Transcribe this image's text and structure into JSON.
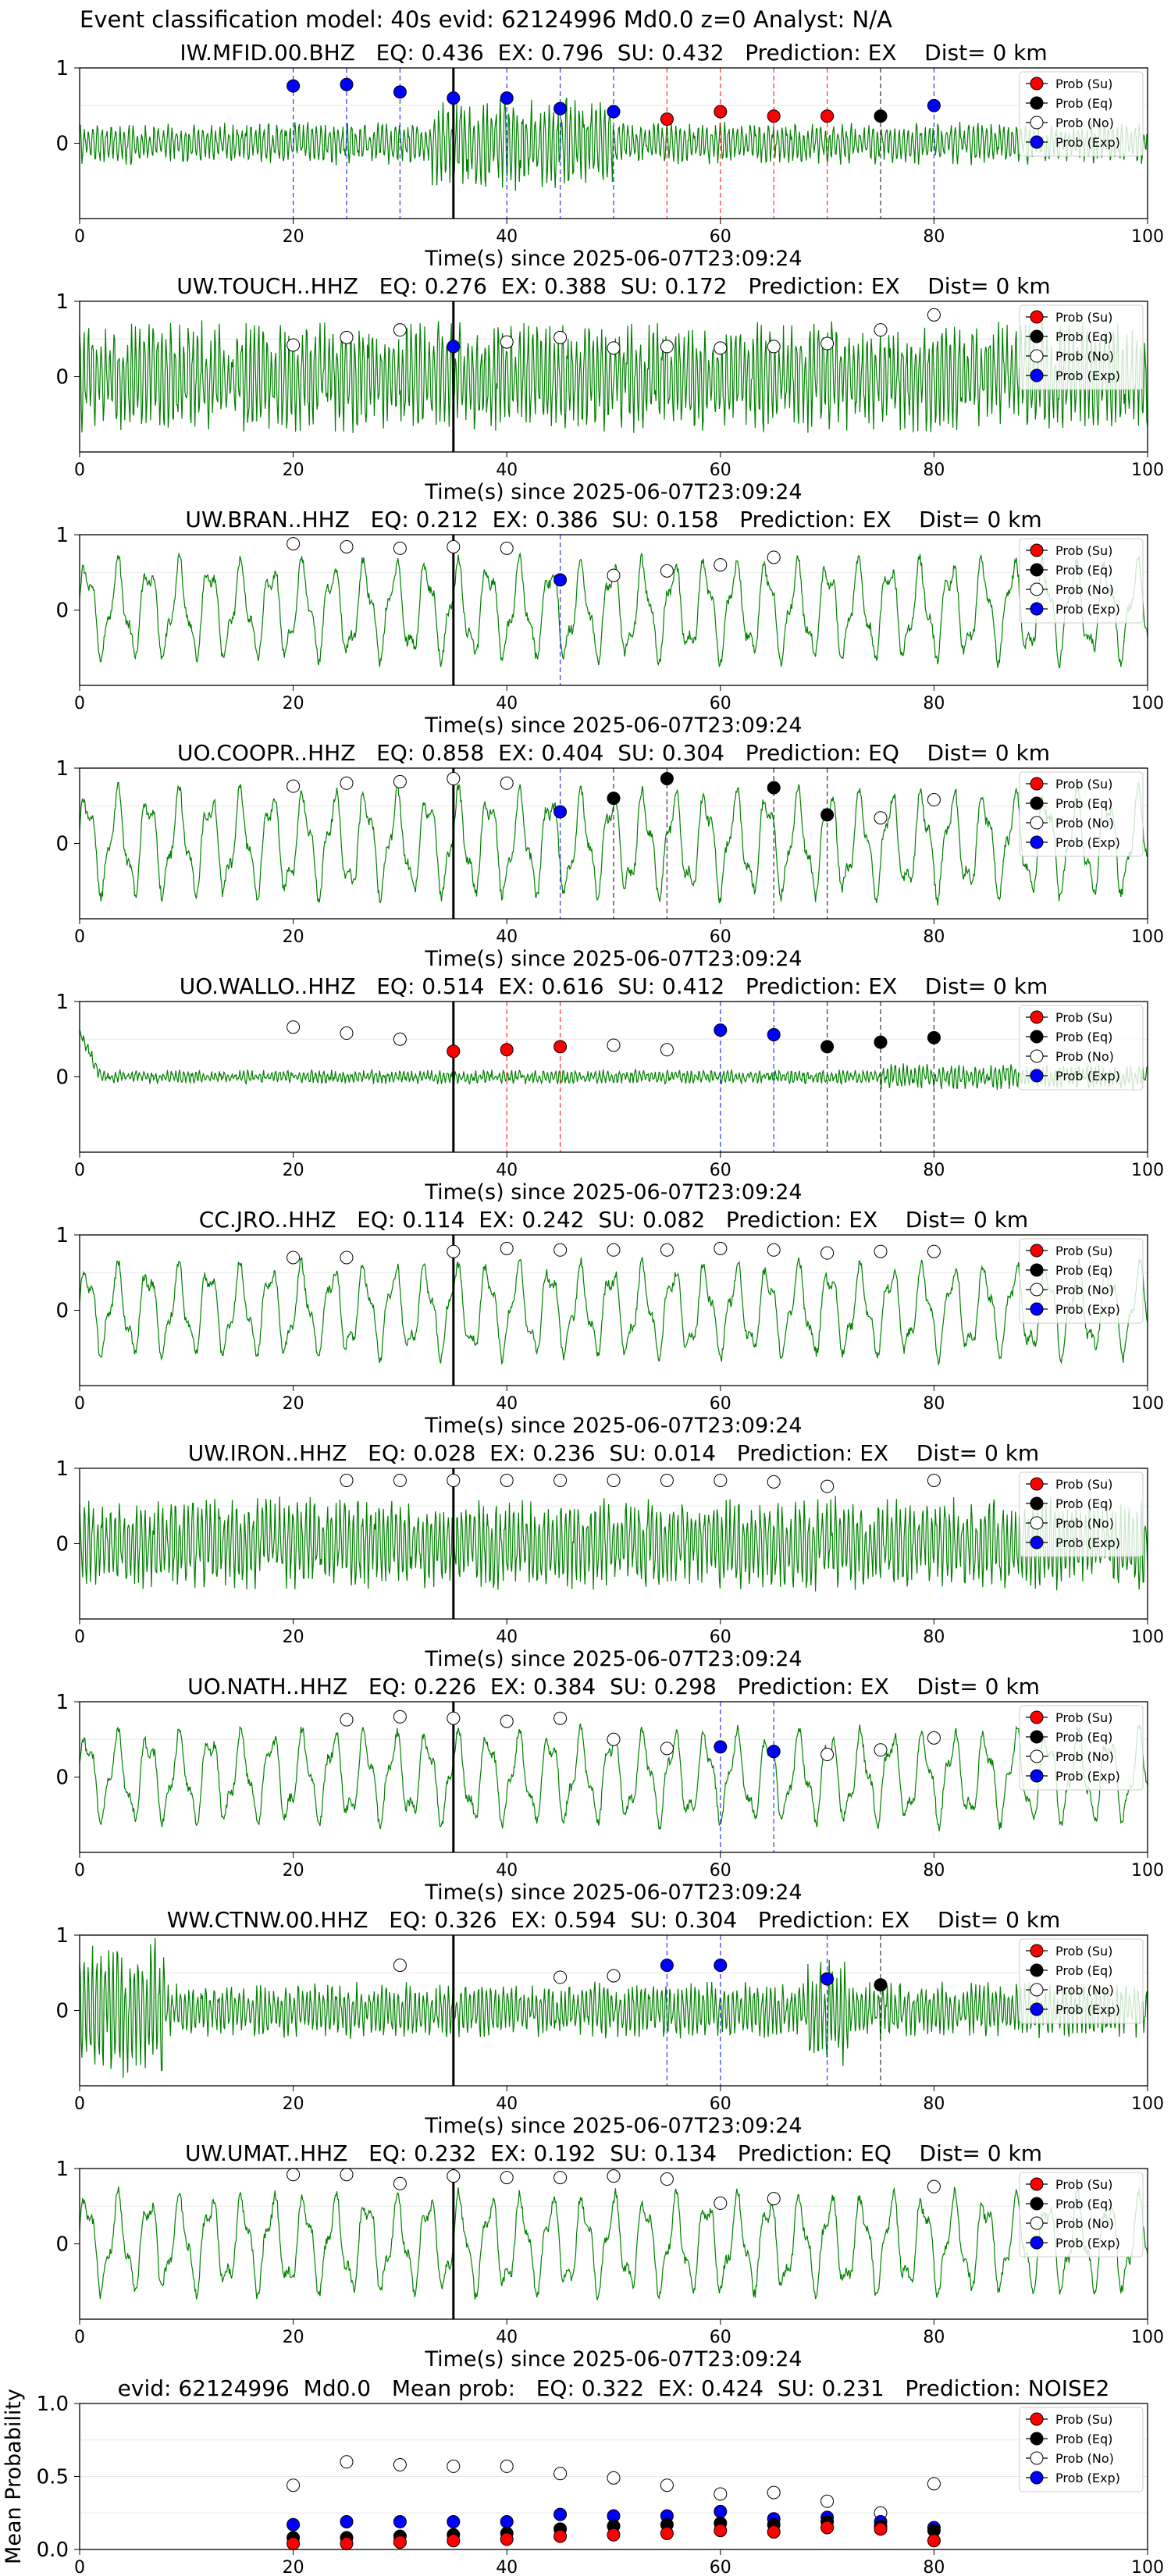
{
  "suptitle": "Event classification model: 40s evid: 62124996 Md0.0 z=0 Analyst: N/A",
  "xlabel": "Time(s) since 2025-06-07T23:09:24",
  "legend": [
    "Prob (Su)",
    "Prob (Eq)",
    "Prob (No)",
    "Prob (Exp)"
  ],
  "colors": {
    "su": "#ff0000",
    "eq": "#000000",
    "no": "#ffffff",
    "exp": "#0000ff",
    "trace": "#008000",
    "pick": "#000000"
  },
  "chart_data": [
    {
      "type": "line",
      "title": "IW.MFID.00.BHZ   EQ: 0.436  EX: 0.796  SU: 0.432   Prediction: EX    Dist= 0 km",
      "xlim": [
        0,
        100
      ],
      "ylim": [
        -1,
        1
      ],
      "xticks": [
        0,
        20,
        40,
        60,
        80,
        100
      ],
      "yticks": [
        "1",
        "0"
      ],
      "pick_time": 35,
      "trace_style": "high_freq",
      "trace_amp": 0.35,
      "points": [
        {
          "x": 20,
          "y": 0.76,
          "c": "exp"
        },
        {
          "x": 25,
          "y": 0.78,
          "c": "exp"
        },
        {
          "x": 30,
          "y": 0.68,
          "c": "exp"
        },
        {
          "x": 35,
          "y": 0.6,
          "c": "exp"
        },
        {
          "x": 40,
          "y": 0.6,
          "c": "exp"
        },
        {
          "x": 45,
          "y": 0.46,
          "c": "exp"
        },
        {
          "x": 50,
          "y": 0.42,
          "c": "exp"
        },
        {
          "x": 55,
          "y": 0.32,
          "c": "su"
        },
        {
          "x": 60,
          "y": 0.42,
          "c": "su"
        },
        {
          "x": 65,
          "y": 0.36,
          "c": "su"
        },
        {
          "x": 70,
          "y": 0.36,
          "c": "su"
        },
        {
          "x": 75,
          "y": 0.36,
          "c": "eq"
        },
        {
          "x": 80,
          "y": 0.5,
          "c": "exp"
        }
      ]
    },
    {
      "type": "line",
      "title": "UW.TOUCH..HHZ   EQ: 0.276  EX: 0.388  SU: 0.172   Prediction: EX    Dist= 0 km",
      "xlim": [
        0,
        100
      ],
      "ylim": [
        -1,
        1
      ],
      "xticks": [
        0,
        20,
        40,
        60,
        80,
        100
      ],
      "yticks": [
        "1",
        "0"
      ],
      "pick_time": 35,
      "trace_style": "high_freq",
      "trace_amp": 0.9,
      "points": [
        {
          "x": 20,
          "y": 0.42,
          "c": "no"
        },
        {
          "x": 25,
          "y": 0.52,
          "c": "no"
        },
        {
          "x": 30,
          "y": 0.62,
          "c": "no"
        },
        {
          "x": 35,
          "y": 0.4,
          "c": "exp"
        },
        {
          "x": 40,
          "y": 0.46,
          "c": "no"
        },
        {
          "x": 45,
          "y": 0.52,
          "c": "no"
        },
        {
          "x": 50,
          "y": 0.38,
          "c": "no"
        },
        {
          "x": 55,
          "y": 0.4,
          "c": "no"
        },
        {
          "x": 60,
          "y": 0.38,
          "c": "no"
        },
        {
          "x": 65,
          "y": 0.4,
          "c": "no"
        },
        {
          "x": 70,
          "y": 0.44,
          "c": "no"
        },
        {
          "x": 75,
          "y": 0.62,
          "c": "no"
        },
        {
          "x": 80,
          "y": 0.82,
          "c": "no"
        }
      ]
    },
    {
      "type": "line",
      "title": "UW.BRAN..HHZ   EQ: 0.212  EX: 0.386  SU: 0.158   Prediction: EX    Dist= 0 km",
      "xlim": [
        0,
        100
      ],
      "ylim": [
        -1,
        1
      ],
      "xticks": [
        0,
        20,
        40,
        60,
        80,
        100
      ],
      "yticks": [
        "1",
        "0"
      ],
      "pick_time": 35,
      "trace_style": "low_freq",
      "trace_amp": 0.75,
      "points": [
        {
          "x": 20,
          "y": 0.88,
          "c": "no"
        },
        {
          "x": 25,
          "y": 0.84,
          "c": "no"
        },
        {
          "x": 30,
          "y": 0.82,
          "c": "no"
        },
        {
          "x": 35,
          "y": 0.84,
          "c": "no"
        },
        {
          "x": 40,
          "y": 0.82,
          "c": "no"
        },
        {
          "x": 45,
          "y": 0.4,
          "c": "exp"
        },
        {
          "x": 50,
          "y": 0.46,
          "c": "no"
        },
        {
          "x": 55,
          "y": 0.52,
          "c": "no"
        },
        {
          "x": 60,
          "y": 0.6,
          "c": "no"
        },
        {
          "x": 65,
          "y": 0.7,
          "c": "no"
        }
      ]
    },
    {
      "type": "line",
      "title": "UO.COOPR..HHZ   EQ: 0.858  EX: 0.404  SU: 0.304   Prediction: EQ    Dist= 0 km",
      "xlim": [
        0,
        100
      ],
      "ylim": [
        -1,
        1
      ],
      "xticks": [
        0,
        20,
        40,
        60,
        80,
        100
      ],
      "yticks": [
        "1",
        "0"
      ],
      "pick_time": 35,
      "trace_style": "low_freq",
      "trace_amp": 0.8,
      "points": [
        {
          "x": 20,
          "y": 0.76,
          "c": "no"
        },
        {
          "x": 25,
          "y": 0.8,
          "c": "no"
        },
        {
          "x": 30,
          "y": 0.82,
          "c": "no"
        },
        {
          "x": 35,
          "y": 0.86,
          "c": "no"
        },
        {
          "x": 40,
          "y": 0.8,
          "c": "no"
        },
        {
          "x": 45,
          "y": 0.42,
          "c": "exp"
        },
        {
          "x": 50,
          "y": 0.6,
          "c": "eq"
        },
        {
          "x": 55,
          "y": 0.86,
          "c": "eq"
        },
        {
          "x": 65,
          "y": 0.74,
          "c": "eq"
        },
        {
          "x": 70,
          "y": 0.38,
          "c": "eq"
        },
        {
          "x": 75,
          "y": 0.34,
          "c": "no"
        },
        {
          "x": 80,
          "y": 0.58,
          "c": "no"
        }
      ]
    },
    {
      "type": "line",
      "title": "UO.WALLO..HHZ   EQ: 0.514  EX: 0.616  SU: 0.412   Prediction: EX    Dist= 0 km",
      "xlim": [
        0,
        100
      ],
      "ylim": [
        -1,
        1
      ],
      "xticks": [
        0,
        20,
        40,
        60,
        80,
        100
      ],
      "yticks": [
        "1",
        "0"
      ],
      "pick_time": 35,
      "trace_style": "quiet",
      "trace_amp": 0.18,
      "points": [
        {
          "x": 20,
          "y": 0.66,
          "c": "no"
        },
        {
          "x": 25,
          "y": 0.58,
          "c": "no"
        },
        {
          "x": 30,
          "y": 0.5,
          "c": "no"
        },
        {
          "x": 35,
          "y": 0.34,
          "c": "su"
        },
        {
          "x": 40,
          "y": 0.36,
          "c": "su"
        },
        {
          "x": 45,
          "y": 0.4,
          "c": "su"
        },
        {
          "x": 50,
          "y": 0.42,
          "c": "no"
        },
        {
          "x": 55,
          "y": 0.36,
          "c": "no"
        },
        {
          "x": 60,
          "y": 0.62,
          "c": "exp"
        },
        {
          "x": 65,
          "y": 0.56,
          "c": "exp"
        },
        {
          "x": 70,
          "y": 0.4,
          "c": "eq"
        },
        {
          "x": 75,
          "y": 0.46,
          "c": "eq"
        },
        {
          "x": 80,
          "y": 0.52,
          "c": "eq"
        }
      ]
    },
    {
      "type": "line",
      "title": "CC.JRO..HHZ   EQ: 0.114  EX: 0.242  SU: 0.082   Prediction: EX    Dist= 0 km",
      "xlim": [
        0,
        100
      ],
      "ylim": [
        -1,
        1
      ],
      "xticks": [
        0,
        20,
        40,
        60,
        80,
        100
      ],
      "yticks": [
        "1",
        "0"
      ],
      "pick_time": 35,
      "trace_style": "low_freq",
      "trace_amp": 0.7,
      "points": [
        {
          "x": 20,
          "y": 0.7,
          "c": "no"
        },
        {
          "x": 25,
          "y": 0.7,
          "c": "no"
        },
        {
          "x": 35,
          "y": 0.78,
          "c": "no"
        },
        {
          "x": 40,
          "y": 0.82,
          "c": "no"
        },
        {
          "x": 45,
          "y": 0.8,
          "c": "no"
        },
        {
          "x": 50,
          "y": 0.8,
          "c": "no"
        },
        {
          "x": 55,
          "y": 0.8,
          "c": "no"
        },
        {
          "x": 60,
          "y": 0.82,
          "c": "no"
        },
        {
          "x": 65,
          "y": 0.8,
          "c": "no"
        },
        {
          "x": 70,
          "y": 0.76,
          "c": "no"
        },
        {
          "x": 75,
          "y": 0.78,
          "c": "no"
        },
        {
          "x": 80,
          "y": 0.78,
          "c": "no"
        }
      ]
    },
    {
      "type": "line",
      "title": "UW.IRON..HHZ   EQ: 0.028  EX: 0.236  SU: 0.014   Prediction: EX    Dist= 0 km",
      "xlim": [
        0,
        100
      ],
      "ylim": [
        -1,
        1
      ],
      "xticks": [
        0,
        20,
        40,
        60,
        80,
        100
      ],
      "yticks": [
        "1",
        "0"
      ],
      "pick_time": 35,
      "trace_style": "high_freq",
      "trace_amp": 0.75,
      "points": [
        {
          "x": 25,
          "y": 0.84,
          "c": "no"
        },
        {
          "x": 30,
          "y": 0.84,
          "c": "no"
        },
        {
          "x": 35,
          "y": 0.84,
          "c": "no"
        },
        {
          "x": 40,
          "y": 0.84,
          "c": "no"
        },
        {
          "x": 45,
          "y": 0.84,
          "c": "no"
        },
        {
          "x": 50,
          "y": 0.84,
          "c": "no"
        },
        {
          "x": 55,
          "y": 0.84,
          "c": "no"
        },
        {
          "x": 60,
          "y": 0.84,
          "c": "no"
        },
        {
          "x": 65,
          "y": 0.82,
          "c": "no"
        },
        {
          "x": 70,
          "y": 0.76,
          "c": "no"
        },
        {
          "x": 80,
          "y": 0.84,
          "c": "no"
        }
      ]
    },
    {
      "type": "line",
      "title": "UO.NATH..HHZ   EQ: 0.226  EX: 0.384  SU: 0.298   Prediction: EX    Dist= 0 km",
      "xlim": [
        0,
        100
      ],
      "ylim": [
        -1,
        1
      ],
      "xticks": [
        0,
        20,
        40,
        60,
        80,
        100
      ],
      "yticks": [
        "1",
        "0"
      ],
      "pick_time": 35,
      "trace_style": "low_freq",
      "trace_amp": 0.7,
      "points": [
        {
          "x": 25,
          "y": 0.76,
          "c": "no"
        },
        {
          "x": 30,
          "y": 0.8,
          "c": "no"
        },
        {
          "x": 35,
          "y": 0.78,
          "c": "no"
        },
        {
          "x": 40,
          "y": 0.74,
          "c": "no"
        },
        {
          "x": 45,
          "y": 0.78,
          "c": "no"
        },
        {
          "x": 50,
          "y": 0.5,
          "c": "no"
        },
        {
          "x": 55,
          "y": 0.38,
          "c": "no"
        },
        {
          "x": 60,
          "y": 0.4,
          "c": "exp"
        },
        {
          "x": 65,
          "y": 0.34,
          "c": "exp"
        },
        {
          "x": 70,
          "y": 0.3,
          "c": "no"
        },
        {
          "x": 75,
          "y": 0.36,
          "c": "no"
        },
        {
          "x": 80,
          "y": 0.52,
          "c": "no"
        }
      ]
    },
    {
      "type": "line",
      "title": "WW.CTNW.00.HHZ   EQ: 0.326  EX: 0.594  SU: 0.304   Prediction: EX    Dist= 0 km",
      "xlim": [
        0,
        100
      ],
      "ylim": [
        -1,
        1
      ],
      "xticks": [
        0,
        20,
        40,
        60,
        80,
        100
      ],
      "yticks": [
        "1",
        "0"
      ],
      "pick_time": 35,
      "trace_style": "early_burst",
      "trace_amp": 0.55,
      "points": [
        {
          "x": 30,
          "y": 0.6,
          "c": "no"
        },
        {
          "x": 45,
          "y": 0.44,
          "c": "no"
        },
        {
          "x": 50,
          "y": 0.46,
          "c": "no"
        },
        {
          "x": 55,
          "y": 0.6,
          "c": "exp"
        },
        {
          "x": 60,
          "y": 0.6,
          "c": "exp"
        },
        {
          "x": 70,
          "y": 0.42,
          "c": "exp"
        },
        {
          "x": 75,
          "y": 0.34,
          "c": "eq"
        }
      ]
    },
    {
      "type": "line",
      "title": "UW.UMAT..HHZ   EQ: 0.232  EX: 0.192  SU: 0.134   Prediction: EQ    Dist= 0 km",
      "xlim": [
        0,
        100
      ],
      "ylim": [
        -1,
        1
      ],
      "xticks": [
        0,
        20,
        40,
        60,
        80,
        100
      ],
      "yticks": [
        "1",
        "0"
      ],
      "pick_time": 35,
      "trace_style": "low_freq",
      "trace_amp": 0.75,
      "points": [
        {
          "x": 20,
          "y": 0.92,
          "c": "no"
        },
        {
          "x": 25,
          "y": 0.92,
          "c": "no"
        },
        {
          "x": 30,
          "y": 0.8,
          "c": "no"
        },
        {
          "x": 35,
          "y": 0.9,
          "c": "no"
        },
        {
          "x": 40,
          "y": 0.88,
          "c": "no"
        },
        {
          "x": 45,
          "y": 0.88,
          "c": "no"
        },
        {
          "x": 50,
          "y": 0.9,
          "c": "no"
        },
        {
          "x": 55,
          "y": 0.86,
          "c": "no"
        },
        {
          "x": 60,
          "y": 0.54,
          "c": "no"
        },
        {
          "x": 65,
          "y": 0.6,
          "c": "no"
        },
        {
          "x": 80,
          "y": 0.76,
          "c": "no"
        }
      ]
    },
    {
      "type": "scatter",
      "title": "evid: 62124996  Md0.0   Mean prob:   EQ: 0.322  EX: 0.424  SU: 0.231   Prediction: NOISE2",
      "ylabel": "Mean Probability",
      "xlim": [
        0,
        100
      ],
      "ylim": [
        0,
        1
      ],
      "xticks": [
        0,
        20,
        40,
        60,
        80,
        100
      ],
      "yticks": [
        "0.0",
        "0.5",
        "1.0"
      ],
      "series": [
        {
          "key": "no",
          "x": [
            20,
            25,
            30,
            35,
            40,
            45,
            50,
            55,
            60,
            65,
            70,
            75,
            80
          ],
          "values": [
            0.44,
            0.6,
            0.58,
            0.57,
            0.57,
            0.52,
            0.49,
            0.44,
            0.38,
            0.39,
            0.33,
            0.25,
            0.45
          ]
        },
        {
          "key": "exp",
          "x": [
            20,
            25,
            30,
            35,
            40,
            45,
            50,
            55,
            60,
            65,
            70,
            75,
            80
          ],
          "values": [
            0.17,
            0.19,
            0.19,
            0.19,
            0.19,
            0.24,
            0.23,
            0.23,
            0.26,
            0.21,
            0.22,
            0.19,
            0.15
          ]
        },
        {
          "key": "eq",
          "x": [
            20,
            25,
            30,
            35,
            40,
            45,
            50,
            55,
            60,
            65,
            70,
            75,
            80
          ],
          "values": [
            0.08,
            0.08,
            0.09,
            0.1,
            0.11,
            0.14,
            0.16,
            0.17,
            0.18,
            0.17,
            0.19,
            0.16,
            0.13
          ]
        },
        {
          "key": "su",
          "x": [
            20,
            25,
            30,
            35,
            40,
            45,
            50,
            55,
            60,
            65,
            70,
            75,
            80
          ],
          "values": [
            0.04,
            0.04,
            0.05,
            0.06,
            0.07,
            0.09,
            0.1,
            0.11,
            0.13,
            0.12,
            0.15,
            0.14,
            0.06
          ]
        }
      ]
    }
  ]
}
